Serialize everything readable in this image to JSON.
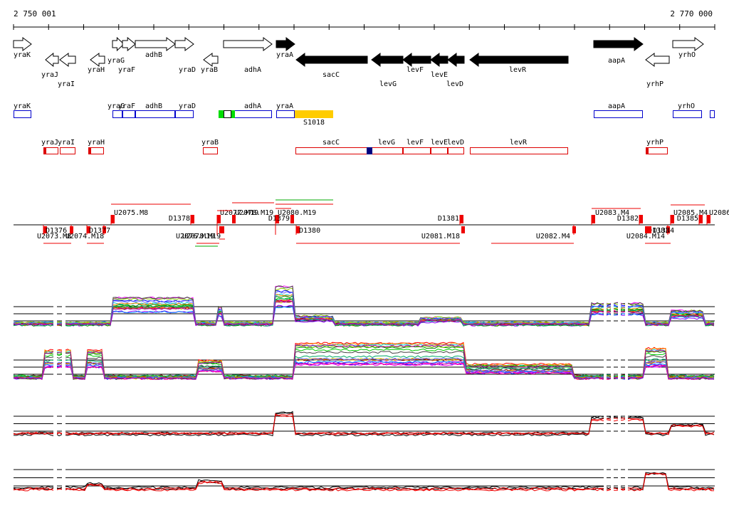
{
  "ruler": {
    "start_label": "2 750 001",
    "end_label": "2 770 000"
  },
  "colors": {
    "gene_fill": "#000000",
    "gene_outline": "#000000",
    "forward_track": "#0000cc",
    "reverse_track": "#dd0000",
    "utr_highlight": "#ffcc00",
    "marker_green": "#00dd00",
    "marker_navy": "#000080",
    "segment_red": "#ee0000",
    "segment_green": "#00aa00",
    "profile_red": "#ee0000",
    "profile_black": "#000000"
  },
  "genes": [
    {
      "label": "yraK"
    },
    {
      "label": "yraJ"
    },
    {
      "label": "yraI"
    },
    {
      "label": "yraH"
    },
    {
      "label": "yraG"
    },
    {
      "label": "yraF"
    },
    {
      "label": "adhB"
    },
    {
      "label": "yraD"
    },
    {
      "label": "yraB"
    },
    {
      "label": "adhA"
    },
    {
      "label": "yraA"
    },
    {
      "label": "sacC"
    },
    {
      "label": "levG"
    },
    {
      "label": "levF"
    },
    {
      "label": "levE"
    },
    {
      "label": "levD"
    },
    {
      "label": "levR"
    },
    {
      "label": "aapA"
    },
    {
      "label": "yrhP"
    },
    {
      "label": "yrhO"
    }
  ],
  "forward_track": [
    {
      "label": "yraK"
    },
    {
      "label": "yraG"
    },
    {
      "label": "yraF"
    },
    {
      "label": "adhB"
    },
    {
      "label": "yraD"
    },
    {
      "label": "adhA"
    },
    {
      "label": "yraA"
    },
    {
      "label": "S1018"
    },
    {
      "label": "aapA"
    },
    {
      "label": "yrhO"
    }
  ],
  "reverse_track": [
    {
      "label": "yraJ"
    },
    {
      "label": "yraI"
    },
    {
      "label": "yraH"
    },
    {
      "label": "yraB"
    },
    {
      "label": "sacC"
    },
    {
      "label": "levG"
    },
    {
      "label": "levF"
    },
    {
      "label": "levE"
    },
    {
      "label": "levD"
    },
    {
      "label": "levR"
    },
    {
      "label": "yrhP"
    }
  ],
  "segments_upper": [
    {
      "label": "U2075.M8"
    },
    {
      "label": "D1378"
    },
    {
      "label": "U2077.M19"
    },
    {
      "label": "U2078.M19"
    },
    {
      "label": "U2080.M19"
    },
    {
      "label": "D1379"
    },
    {
      "label": "D1381"
    },
    {
      "label": "U2083.M4"
    },
    {
      "label": "D1382"
    },
    {
      "label": "U2085.M4"
    },
    {
      "label": "D1385"
    },
    {
      "label": "U2086"
    }
  ],
  "segments_lower": [
    {
      "label": "D1376"
    },
    {
      "label": "U2073.M8"
    },
    {
      "label": "U2074.M18"
    },
    {
      "label": "D1377"
    },
    {
      "label": "U2076.M19"
    },
    {
      "label": "U2078.M19"
    },
    {
      "label": "D1380"
    },
    {
      "label": "U2081.M18"
    },
    {
      "label": "U2082.M4"
    },
    {
      "label": "U2084.M14"
    },
    {
      "label": "D1383"
    },
    {
      "label": "D1384"
    }
  ]
}
